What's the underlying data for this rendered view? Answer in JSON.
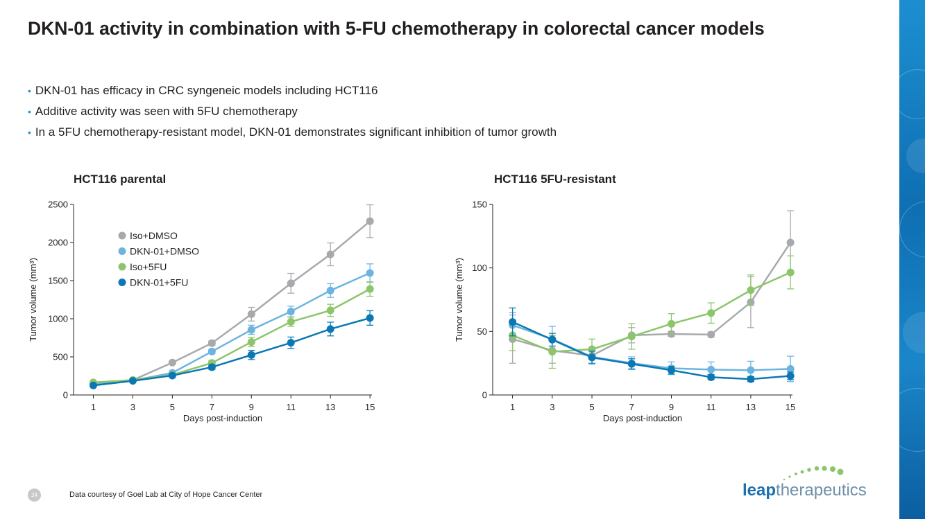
{
  "slide": {
    "title": "DKN-01 activity in combination with 5-FU chemotherapy in colorectal cancer models",
    "bullets": [
      "DKN-01 has efficacy in CRC syngeneic models including HCT116",
      "Additive activity was seen with 5FU chemotherapy",
      "In a 5FU chemotherapy-resistant model, DKN-01 demonstrates significant inhibition of tumor growth"
    ],
    "bullet_glyph": "•",
    "footer_note": "Data courtesy of Goel Lab at City of Hope Cancer Center",
    "page_number": "24",
    "logo": {
      "leap": "leap",
      "therapeutics": "therapeutics"
    }
  },
  "colors": {
    "iso_dmso": "#a7a9ac",
    "dkn_dmso": "#6cb4df",
    "iso_5fu": "#8cc56b",
    "dkn_5fu": "#0b78b4",
    "axis": "#231f20",
    "bullet": "#2a8fc7"
  },
  "chart_data": [
    {
      "type": "line",
      "title": "HCT116 parental",
      "xlabel": "Days post-induction",
      "ylabel": "Tumor volume (mm³)",
      "x": [
        1,
        3,
        5,
        7,
        9,
        11,
        13,
        15
      ],
      "xticks": [
        "1",
        "3",
        "5",
        "7",
        "9",
        "11",
        "13",
        "15"
      ],
      "xlim": [
        0,
        15.1
      ],
      "ylim": [
        0,
        2500
      ],
      "yticks": [
        "0",
        "500",
        "1000",
        "1500",
        "2000",
        "2500"
      ],
      "ytick_values": [
        0,
        500,
        1000,
        1500,
        2000,
        2500
      ],
      "legend": "upper-left",
      "series": [
        {
          "name": "Iso+DMSO",
          "color": "#a7a9ac",
          "values": [
            140,
            195,
            425,
            680,
            1060,
            1465,
            1845,
            2280
          ],
          "errors": [
            10,
            10,
            20,
            30,
            90,
            130,
            150,
            215
          ]
        },
        {
          "name": "DKN-01+DMSO",
          "color": "#6cb4df",
          "values": [
            135,
            190,
            290,
            570,
            855,
            1095,
            1370,
            1600
          ],
          "errors": [
            10,
            10,
            20,
            30,
            60,
            70,
            90,
            120
          ]
        },
        {
          "name": "Iso+5FU",
          "color": "#8cc56b",
          "values": [
            165,
            195,
            265,
            420,
            695,
            960,
            1110,
            1390
          ],
          "errors": [
            10,
            10,
            20,
            30,
            60,
            60,
            80,
            95
          ]
        },
        {
          "name": "DKN-01+5FU",
          "color": "#0b78b4",
          "values": [
            125,
            185,
            255,
            365,
            525,
            685,
            865,
            1010
          ],
          "errors": [
            10,
            10,
            20,
            30,
            60,
            75,
            90,
            95
          ]
        }
      ]
    },
    {
      "type": "line",
      "title": "HCT116 5FU-resistant",
      "xlabel": "Days post-induction",
      "ylabel": "Tumor volume (mm³)",
      "x": [
        1,
        3,
        5,
        7,
        9,
        11,
        13,
        15
      ],
      "xticks": [
        "1",
        "3",
        "5",
        "7",
        "9",
        "11",
        "13",
        "15"
      ],
      "xlim": [
        0,
        15.1
      ],
      "ylim": [
        0,
        150
      ],
      "yticks": [
        "0",
        "50",
        "100",
        "150"
      ],
      "ytick_values": [
        0,
        50,
        100,
        150
      ],
      "legend": "none",
      "series": [
        {
          "name": "Iso+DMSO",
          "color": "#a7a9ac",
          "values": [
            44,
            35,
            31,
            47,
            48,
            47.5,
            73,
            120
          ],
          "errors": [
            19,
            10,
            6,
            6,
            2,
            2,
            20,
            25
          ]
        },
        {
          "name": "DKN-01+DMSO",
          "color": "#6cb4df",
          "values": [
            55,
            44,
            30,
            25,
            21,
            20,
            19.5,
            20.5
          ],
          "errors": [
            10,
            10,
            5,
            5,
            5,
            6,
            7,
            10
          ]
        },
        {
          "name": "Iso+5FU",
          "color": "#8cc56b",
          "values": [
            47,
            34,
            36,
            46,
            56,
            64.5,
            82.5,
            96.5
          ],
          "errors": [
            12,
            13,
            8,
            10,
            8,
            8,
            12,
            13
          ]
        },
        {
          "name": "DKN-01+5FU",
          "color": "#0b78b4",
          "values": [
            57.5,
            43.5,
            29.5,
            24.5,
            19.5,
            14,
            12.5,
            15
          ],
          "errors": [
            11,
            5,
            5,
            4,
            3,
            2,
            2,
            3
          ]
        }
      ]
    }
  ]
}
